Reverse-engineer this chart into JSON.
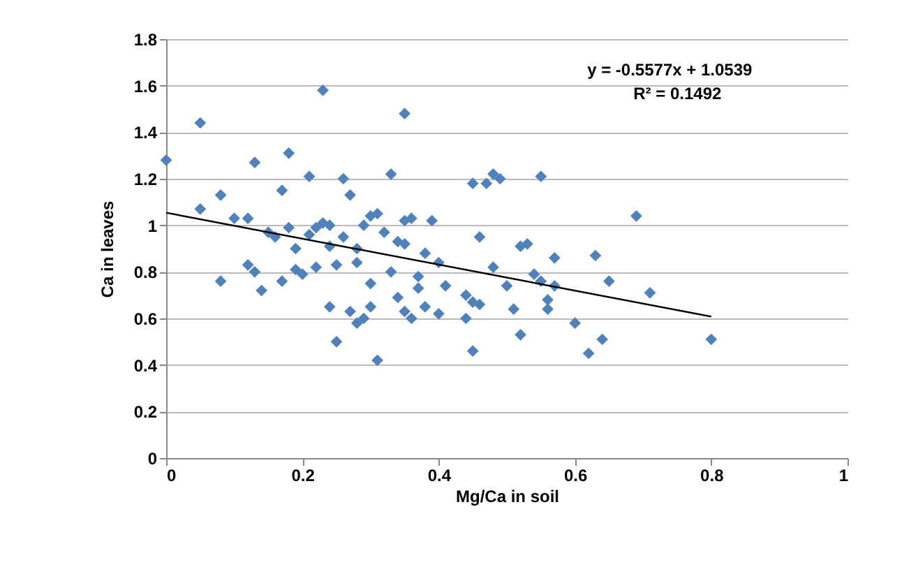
{
  "chart_data": {
    "type": "scatter",
    "xlabel": "Mg/Ca in soil",
    "ylabel": "Ca in leaves",
    "xlim": [
      0,
      1
    ],
    "xticks": [
      0,
      0.2,
      0.4,
      0.6,
      0.8,
      1
    ],
    "ylim": [
      0,
      1.8
    ],
    "yticks": [
      0,
      0.2,
      0.4,
      0.6,
      0.8,
      1,
      1.2,
      1.4,
      1.6,
      1.8
    ],
    "grid": "y",
    "annotations": [
      "y = -0.5577x + 1.0539",
      "R² = 0.1492"
    ],
    "series": [
      {
        "color": "#4f81bd",
        "marker": "diamond",
        "x": [
          0,
          0.05,
          0.05,
          0.08,
          0.08,
          0.1,
          0.12,
          0.12,
          0.13,
          0.13,
          0.14,
          0.15,
          0.16,
          0.17,
          0.17,
          0.18,
          0.18,
          0.19,
          0.19,
          0.2,
          0.21,
          0.21,
          0.22,
          0.22,
          0.23,
          0.23,
          0.24,
          0.24,
          0.24,
          0.25,
          0.25,
          0.26,
          0.26,
          0.27,
          0.27,
          0.28,
          0.28,
          0.28,
          0.29,
          0.29,
          0.3,
          0.3,
          0.3,
          0.31,
          0.31,
          0.32,
          0.33,
          0.33,
          0.34,
          0.34,
          0.35,
          0.35,
          0.35,
          0.35,
          0.36,
          0.36,
          0.37,
          0.37,
          0.38,
          0.38,
          0.39,
          0.4,
          0.4,
          0.41,
          0.44,
          0.44,
          0.45,
          0.45,
          0.45,
          0.46,
          0.46,
          0.47,
          0.48,
          0.48,
          0.49,
          0.5,
          0.51,
          0.52,
          0.52,
          0.53,
          0.54,
          0.55,
          0.55,
          0.56,
          0.56,
          0.57,
          0.57,
          0.6,
          0.62,
          0.63,
          0.64,
          0.65,
          0.69,
          0.71,
          0.8
        ],
        "values": [
          1.28,
          1.44,
          1.07,
          1.13,
          0.76,
          1.03,
          0.83,
          1.03,
          1.27,
          0.8,
          0.72,
          0.97,
          0.95,
          0.76,
          1.15,
          1.31,
          0.99,
          0.9,
          0.81,
          0.79,
          1.21,
          0.96,
          0.82,
          0.99,
          1.01,
          1.58,
          1.0,
          0.91,
          0.65,
          0.83,
          0.5,
          0.95,
          1.2,
          1.13,
          0.63,
          0.58,
          0.9,
          0.84,
          0.6,
          1.0,
          1.04,
          0.65,
          0.75,
          1.05,
          0.42,
          0.97,
          1.22,
          0.8,
          0.69,
          0.93,
          1.48,
          0.63,
          1.02,
          0.92,
          0.6,
          1.03,
          0.73,
          0.78,
          0.88,
          0.65,
          1.02,
          0.84,
          0.62,
          0.74,
          0.7,
          0.6,
          1.18,
          0.46,
          0.67,
          0.66,
          0.95,
          1.18,
          1.22,
          0.82,
          1.2,
          0.74,
          0.64,
          0.91,
          0.53,
          0.92,
          0.79,
          1.21,
          0.76,
          0.64,
          0.68,
          0.86,
          0.74,
          0.58,
          0.45,
          0.87,
          0.51,
          0.76,
          1.04,
          0.71,
          0.51
        ]
      },
      {
        "type": "line",
        "color": "#000000",
        "line_style": "solid",
        "x": [
          0,
          0.8
        ],
        "values": [
          1.054,
          0.608
        ]
      }
    ]
  }
}
